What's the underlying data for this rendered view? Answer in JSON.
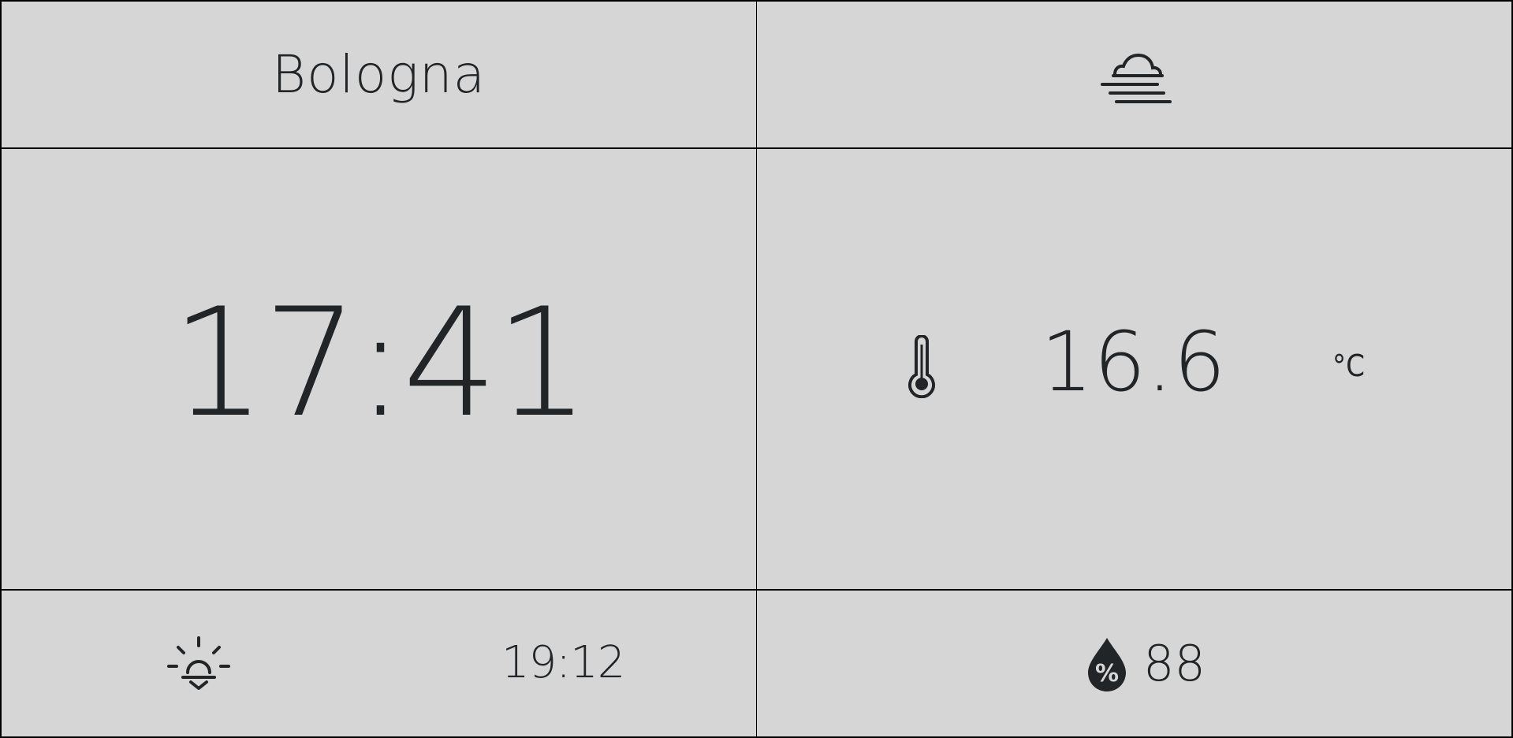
{
  "location": {
    "city": "Bologna"
  },
  "weather": {
    "condition_icon": "fog-icon"
  },
  "clock": {
    "time": "17:41"
  },
  "temperature": {
    "icon": "thermometer-icon",
    "value": "16.6",
    "unit": "°C"
  },
  "sunset": {
    "icon": "sunset-icon",
    "time": "19:12"
  },
  "humidity": {
    "icon": "humidity-drop-icon",
    "value": "88"
  },
  "colors": {
    "background": "#d6d6d6",
    "foreground": "#222528",
    "grid_lines": "#000000"
  }
}
